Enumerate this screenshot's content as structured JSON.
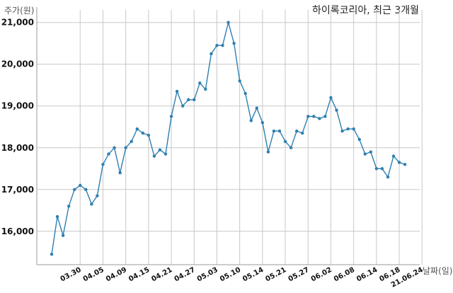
{
  "chart_data": {
    "type": "line",
    "title": "하이록코리아, 최근 3개월",
    "ylabel": "주가(원)",
    "xlabel": "날짜(일)",
    "ylim": [
      15200,
      21300
    ],
    "yticks": [
      16000,
      17000,
      18000,
      19000,
      20000,
      21000
    ],
    "ytick_labels": [
      "16,000",
      "17,000",
      "18,000",
      "19,000",
      "20,000",
      "21,000"
    ],
    "xtick_labels": [
      "03.30",
      "04.05",
      "04.09",
      "04.15",
      "04.21",
      "04.27",
      "05.03",
      "05.10",
      "05.14",
      "05.21",
      "05.27",
      "06.02",
      "06.08",
      "06.14",
      "06.18",
      "21.06.24"
    ],
    "xtick_index": [
      5,
      9,
      13,
      17,
      21,
      25,
      29,
      33,
      37,
      41,
      45,
      49,
      53,
      57,
      61,
      65
    ],
    "grid": true,
    "color": "#2e7fb0",
    "values": [
      15450,
      16350,
      15900,
      16600,
      17000,
      17100,
      17000,
      16650,
      16850,
      17600,
      17850,
      18000,
      17400,
      18000,
      18150,
      18450,
      18350,
      18300,
      17800,
      17950,
      17850,
      18750,
      19350,
      19000,
      19150,
      19150,
      19550,
      19400,
      20250,
      20450,
      20450,
      21000,
      20500,
      19600,
      19300,
      18650,
      18950,
      18600,
      17900,
      18400,
      18400,
      18150,
      18000,
      18400,
      18350,
      18750,
      18750,
      18700,
      18750,
      19200,
      18900,
      18400,
      18450,
      18450,
      18200,
      17850,
      17900,
      17500,
      17500,
      17300,
      17800,
      17650,
      17600
    ]
  }
}
